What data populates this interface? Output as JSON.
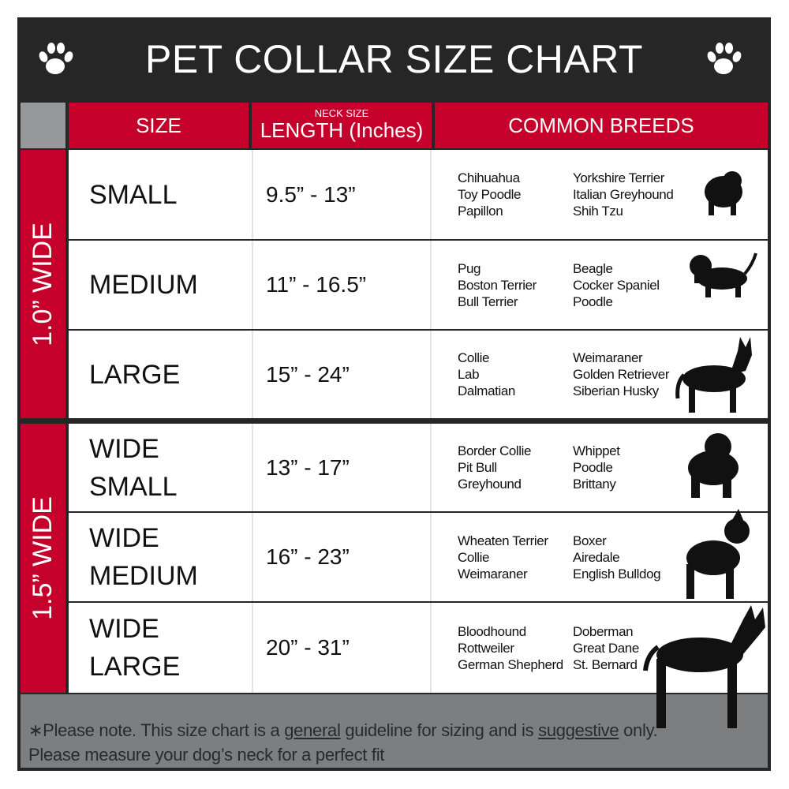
{
  "title": "PET COLLAR SIZE CHART",
  "headers": {
    "size": "SIZE",
    "length_top": "NECK SIZE",
    "length": "LENGTH (Inches)",
    "breeds": "COMMON BREEDS"
  },
  "groups": [
    {
      "label": "1.0” WIDE"
    },
    {
      "label": "1.5” WIDE"
    }
  ],
  "rows": [
    {
      "size": [
        "SMALL"
      ],
      "length": "9.5” - 13”",
      "breeds_a": [
        "Chihuahua",
        "Toy Poodle",
        "Papillon"
      ],
      "breeds_b": [
        "Yorkshire Terrier",
        "Italian Greyhound",
        "Shih Tzu"
      ]
    },
    {
      "size": [
        "MEDIUM"
      ],
      "length": "11” - 16.5”",
      "breeds_a": [
        "Pug",
        "Boston Terrier",
        "Bull Terrier"
      ],
      "breeds_b": [
        "Beagle",
        "Cocker Spaniel",
        "Poodle"
      ]
    },
    {
      "size": [
        "LARGE"
      ],
      "length": "15” - 24”",
      "breeds_a": [
        "Collie",
        "Lab",
        "Dalmatian"
      ],
      "breeds_b": [
        "Weimaraner",
        "Golden Retriever",
        "Siberian Husky"
      ]
    },
    {
      "size": [
        "WIDE",
        "SMALL"
      ],
      "length": "13” - 17”",
      "breeds_a": [
        "Border Collie",
        "Pit Bull",
        "Greyhound"
      ],
      "breeds_b": [
        "Whippet",
        "Poodle",
        "Brittany"
      ]
    },
    {
      "size": [
        "WIDE",
        "MEDIUM"
      ],
      "length": "16” - 23”",
      "breeds_a": [
        "Wheaten Terrier",
        "Collie",
        "Weimaraner"
      ],
      "breeds_b": [
        "Boxer",
        "Airedale",
        "English Bulldog"
      ]
    },
    {
      "size": [
        "WIDE",
        "LARGE"
      ],
      "length": "20” - 31”",
      "breeds_a": [
        "Bloodhound",
        "Rottweiler",
        "German Shepherd"
      ],
      "breeds_b": [
        "Doberman",
        "Great Dane",
        "St. Bernard"
      ]
    }
  ],
  "footer": {
    "p1": "∗Please note. This size chart is a ",
    "u1": "general",
    "p2": " guideline for sizing and is ",
    "u2": "suggestive",
    "p3": " only.",
    "line2": "Please measure your dog’s neck for a perfect fit"
  },
  "colors": {
    "red": "#c4002b",
    "dark": "#262626",
    "gray": "#7d7e80"
  },
  "icons": [
    "paw-icon",
    "paw-icon",
    "small-dog-silhouette",
    "beagle-silhouette",
    "husky-silhouette",
    "bulldog-silhouette",
    "pitbull-silhouette",
    "doberman-silhouette"
  ]
}
